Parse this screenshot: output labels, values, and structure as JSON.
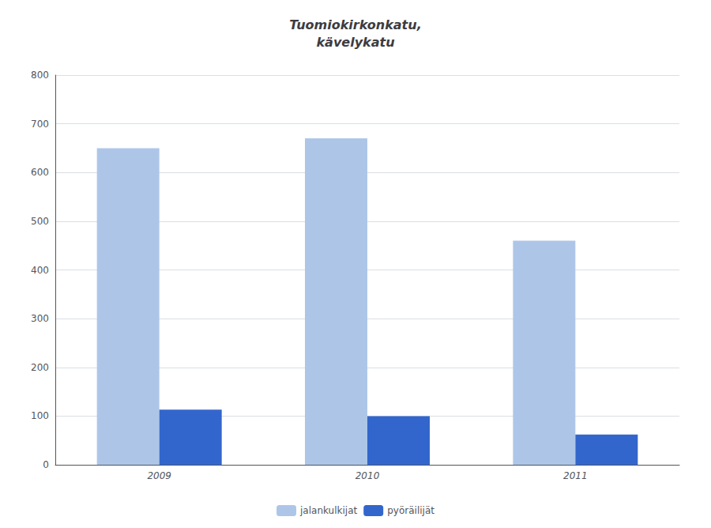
{
  "chart_data": {
    "type": "bar",
    "title": "Tuomiokirkonkatu,\nkävelykatu",
    "categories": [
      "2009",
      "2010",
      "2011"
    ],
    "series": [
      {
        "name": "jalankulkijat",
        "color": "#adc6e8",
        "values": [
          650,
          670,
          460
        ]
      },
      {
        "name": "pyöräilijät",
        "color": "#3366cc",
        "values": [
          113,
          100,
          62
        ]
      }
    ],
    "ylim": [
      0,
      800
    ],
    "yticks": [
      0,
      100,
      200,
      300,
      400,
      500,
      600,
      700,
      800
    ],
    "grid": true,
    "legend": "bottom"
  }
}
